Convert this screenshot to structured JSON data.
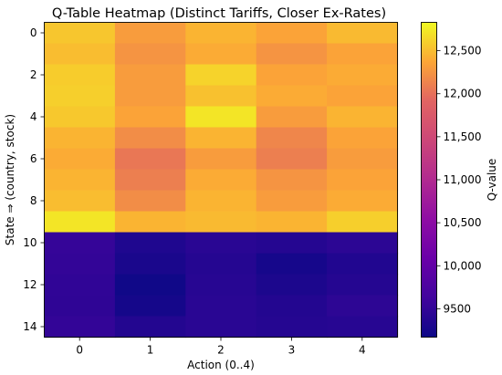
{
  "chart_data": {
    "type": "heatmap",
    "title": "Q-Table Heatmap (Distinct Tariffs, Closer Ex-Rates)",
    "xlabel": "Action (0..4)",
    "ylabel": "State ⇒ (country, stock)",
    "colorbar_label": "Q-value",
    "colormap": "plasma",
    "x_ticks": [
      "0",
      "1",
      "2",
      "3",
      "4"
    ],
    "y_ticks": [
      "0",
      "2",
      "4",
      "6",
      "8",
      "10",
      "12",
      "14"
    ],
    "colorbar_ticks": [
      9500,
      10000,
      10500,
      11000,
      11500,
      12000,
      12500
    ],
    "colorbar_tick_labels": [
      "9500",
      "10,000",
      "10,500",
      "11,000",
      "11,500",
      "12,000",
      "12,500"
    ],
    "vmin": 9170,
    "vmax": 12830,
    "rows": 15,
    "cols": 5,
    "values": [
      [
        12550,
        12300,
        12450,
        12350,
        12480
      ],
      [
        12500,
        12250,
        12400,
        12250,
        12350
      ],
      [
        12580,
        12300,
        12620,
        12350,
        12400
      ],
      [
        12600,
        12300,
        12520,
        12400,
        12350
      ],
      [
        12560,
        12350,
        12720,
        12300,
        12450
      ],
      [
        12450,
        12200,
        12450,
        12150,
        12350
      ],
      [
        12400,
        12050,
        12300,
        12100,
        12300
      ],
      [
        12450,
        12100,
        12400,
        12250,
        12350
      ],
      [
        12500,
        12200,
        12450,
        12300,
        12400
      ],
      [
        12720,
        12450,
        12480,
        12450,
        12600
      ],
      [
        9520,
        9330,
        9420,
        9380,
        9440
      ],
      [
        9500,
        9280,
        9380,
        9250,
        9350
      ],
      [
        9480,
        9200,
        9400,
        9300,
        9380
      ],
      [
        9470,
        9240,
        9420,
        9360,
        9450
      ],
      [
        9500,
        9360,
        9420,
        9380,
        9400
      ]
    ]
  }
}
